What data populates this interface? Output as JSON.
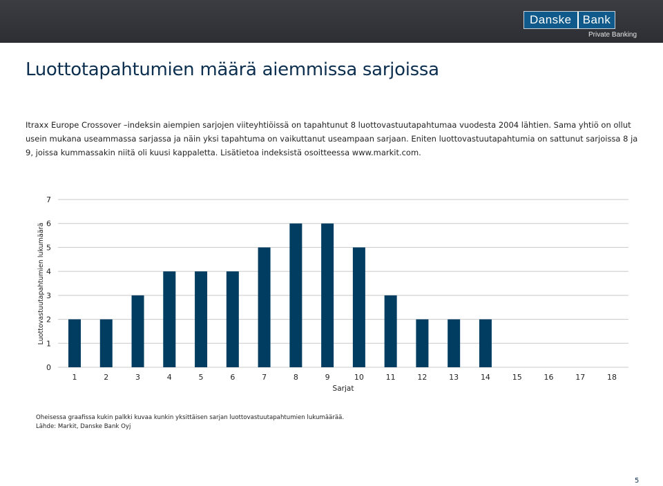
{
  "header": {
    "logo_left": "Danske",
    "logo_right": "Bank",
    "logo_sub": "Private Banking"
  },
  "title": "Luottotapahtumien määrä aiemmissa sarjoissa",
  "intro": "Itraxx Europe Crossover –indeksin aiempien sarjojen viiteyhtiöissä on tapahtunut 8 luottovastuutapahtumaa vuodesta 2004 lähtien. Sama yhtiö on ollut usein mukana useammassa sarjassa ja näin yksi tapahtuma on vaikuttanut useampaan sarjaan.  Eniten luottovastuutapahtumia on sattunut sarjoissa 8 ja 9, joissa kummassakin niitä oli kuusi kappaletta. Lisätietoa indeksistä osoitteessa www.markit.com.",
  "chart_data": {
    "type": "bar",
    "categories": [
      "1",
      "2",
      "3",
      "4",
      "5",
      "6",
      "7",
      "8",
      "9",
      "10",
      "11",
      "12",
      "13",
      "14",
      "15",
      "16",
      "17",
      "18"
    ],
    "values": [
      2,
      2,
      3,
      4,
      4,
      4,
      5,
      6,
      6,
      5,
      3,
      2,
      2,
      2,
      0,
      0,
      0,
      0
    ],
    "title": "",
    "xlabel": "Sarjat",
    "ylabel": "Luottovastuutapahtumien lukumäärä",
    "ylim": [
      0,
      7
    ],
    "yticks": [
      0,
      1,
      2,
      3,
      4,
      5,
      6,
      7
    ],
    "grid": true,
    "legend": "none",
    "bar_color": "#003d61",
    "grid_color": "#c8c8c8"
  },
  "footnote": {
    "line1": "Oheisessa graafissa kukin palkki kuvaa kunkin yksittäisen sarjan luottovastuutapahtumien lukumäärää.",
    "line2": "Lähde: Markit, Danske Bank Oyj"
  },
  "page_number": "5"
}
